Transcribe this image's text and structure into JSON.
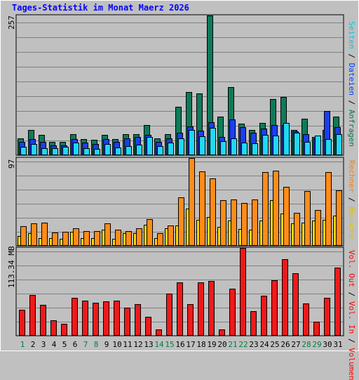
{
  "chart_data": {
    "type": "bar",
    "title": "Tages-Statistik im Monat Maerz 2026",
    "categories": [
      "1",
      "2",
      "3",
      "4",
      "5",
      "6",
      "7",
      "8",
      "9",
      "10",
      "11",
      "12",
      "13",
      "14",
      "15",
      "16",
      "17",
      "18",
      "19",
      "20",
      "21",
      "22",
      "23",
      "24",
      "25",
      "26",
      "27",
      "28",
      "29",
      "30",
      "31"
    ],
    "weekend_days": [
      "1",
      "7",
      "8",
      "14",
      "15",
      "21",
      "22",
      "28",
      "29"
    ],
    "panels": [
      {
        "id": "hits",
        "ymax_label": "257",
        "ymax": 257,
        "legend": [
          {
            "text": "Anfragen",
            "color": "#007a4c"
          },
          {
            "text": "Dateien",
            "color": "#0040ff"
          },
          {
            "text": "Seiten",
            "color": "#00c8e6"
          }
        ],
        "series": [
          {
            "name": "Anfragen",
            "color": "#0f7a5a",
            "values": [
              30,
              46,
              36,
              23,
              24,
              38,
              28,
              27,
              36,
              29,
              38,
              38,
              54,
              30,
              38,
              88,
              115,
              113,
              257,
              70,
              125,
              57,
              46,
              59,
              103,
              106,
              45,
              66,
              33,
              46,
              70
            ]
          },
          {
            "name": "Dateien",
            "color": "#1a3ff0",
            "values": [
              24,
              28,
              24,
              17,
              17,
              29,
              22,
              20,
              29,
              24,
              30,
              32,
              36,
              24,
              30,
              40,
              52,
              44,
              60,
              33,
              65,
              50,
              40,
              48,
              55,
              55,
              43,
              38,
              30,
              80,
              50
            ]
          },
          {
            "name": "Seiten",
            "color": "#20d8f8",
            "values": [
              14,
              20,
              12,
              12,
              14,
              22,
              12,
              10,
              20,
              13,
              15,
              18,
              32,
              16,
              22,
              30,
              45,
              34,
              49,
              25,
              30,
              22,
              21,
              36,
              35,
              58,
              40,
              23,
              35,
              29,
              38
            ]
          }
        ]
      },
      {
        "id": "visits",
        "ymax_label": "97",
        "ymax": 97,
        "legend": [
          {
            "text": "Besuche",
            "color": "#e0c000"
          },
          {
            "text": "Rechner",
            "color": "#ff8000"
          }
        ],
        "series": [
          {
            "name": "Besuche",
            "color": "#ffd800",
            "values": [
              10,
              13,
              8,
              8,
              7,
              15,
              8,
              8,
              17,
              7,
              13,
              13,
              23,
              8,
              19,
              22,
              41,
              28,
              31,
              20,
              27,
              18,
              17,
              27,
              50,
              35,
              24,
              25,
              27,
              28,
              33
            ]
          },
          {
            "name": "Rechner",
            "color": "#ff8c1a",
            "values": [
              21,
              24,
              25,
              14,
              15,
              19,
              16,
              16,
              24,
              17,
              16,
              19,
              29,
              13,
              22,
              53,
              97,
              82,
              74,
              50,
              51,
              47,
              51,
              81,
              83,
              65,
              36,
              60,
              39,
              81,
              61
            ]
          }
        ]
      },
      {
        "id": "volume",
        "ymax_label": "113.34 MB",
        "ymax": 113.34,
        "legend": [
          {
            "text": "Volumen",
            "color": "#ff0000"
          },
          {
            "text": "Vol. In",
            "color": "#ff0000"
          },
          {
            "text": "Vol. Out",
            "color": "#ff0000"
          }
        ],
        "series": [
          {
            "name": "Volumen",
            "color": "#ee1a1a",
            "values": [
              33,
              52,
              39,
              19,
              15,
              48,
              45,
              42,
              44,
              45,
              36,
              40,
              24,
              7,
              54,
              69,
              40,
              69,
              70,
              7,
              60,
              113,
              31,
              51,
              71,
              99,
              80,
              41,
              17,
              48,
              88
            ]
          }
        ]
      }
    ],
    "legend_separator": "/"
  },
  "colors": {
    "background": "#c0c0c0",
    "grid": "#808080",
    "weekday_label": "#000000",
    "weekend_label": "#008040",
    "title": "#0000ff"
  }
}
